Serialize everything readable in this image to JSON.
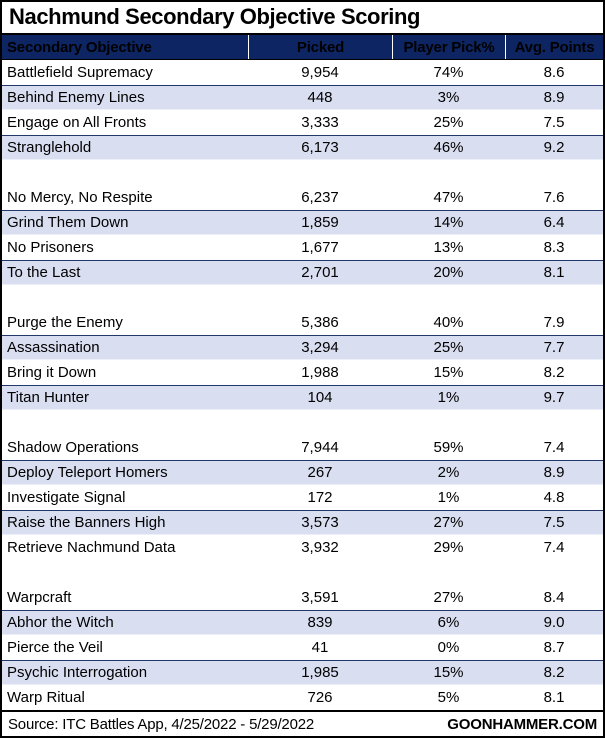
{
  "title": "Nachmund Secondary Objective Scoring",
  "colors": {
    "header_bg": "#0e2563",
    "header_text": "#ffffff",
    "alt_row_bg": "#d9def1",
    "row_bg": "#ffffff",
    "border": "#000000"
  },
  "chart_data": {
    "type": "table",
    "title": "Nachmund Secondary Objective Scoring",
    "columns": [
      "Secondary Objective",
      "Picked",
      "Player Pick%",
      "Avg. Points"
    ],
    "groups": [
      [
        {
          "objective": "Battlefield Supremacy",
          "picked": "9,954",
          "pick_pct": "74%",
          "avg_points": "8.6"
        },
        {
          "objective": "Behind Enemy Lines",
          "picked": "448",
          "pick_pct": "3%",
          "avg_points": "8.9"
        },
        {
          "objective": "Engage on All Fronts",
          "picked": "3,333",
          "pick_pct": "25%",
          "avg_points": "7.5"
        },
        {
          "objective": "Stranglehold",
          "picked": "6,173",
          "pick_pct": "46%",
          "avg_points": "9.2"
        }
      ],
      [
        {
          "objective": "No Mercy, No Respite",
          "picked": "6,237",
          "pick_pct": "47%",
          "avg_points": "7.6"
        },
        {
          "objective": "Grind Them Down",
          "picked": "1,859",
          "pick_pct": "14%",
          "avg_points": "6.4"
        },
        {
          "objective": "No Prisoners",
          "picked": "1,677",
          "pick_pct": "13%",
          "avg_points": "8.3"
        },
        {
          "objective": "To the Last",
          "picked": "2,701",
          "pick_pct": "20%",
          "avg_points": "8.1"
        }
      ],
      [
        {
          "objective": "Purge the Enemy",
          "picked": "5,386",
          "pick_pct": "40%",
          "avg_points": "7.9"
        },
        {
          "objective": "Assassination",
          "picked": "3,294",
          "pick_pct": "25%",
          "avg_points": "7.7"
        },
        {
          "objective": "Bring it Down",
          "picked": "1,988",
          "pick_pct": "15%",
          "avg_points": "8.2"
        },
        {
          "objective": "Titan Hunter",
          "picked": "104",
          "pick_pct": "1%",
          "avg_points": "9.7"
        }
      ],
      [
        {
          "objective": "Shadow Operations",
          "picked": "7,944",
          "pick_pct": "59%",
          "avg_points": "7.4"
        },
        {
          "objective": "Deploy Teleport Homers",
          "picked": "267",
          "pick_pct": "2%",
          "avg_points": "8.9"
        },
        {
          "objective": "Investigate Signal",
          "picked": "172",
          "pick_pct": "1%",
          "avg_points": "4.8"
        },
        {
          "objective": "Raise the Banners High",
          "picked": "3,573",
          "pick_pct": "27%",
          "avg_points": "7.5"
        },
        {
          "objective": "Retrieve Nachmund Data",
          "picked": "3,932",
          "pick_pct": "29%",
          "avg_points": "7.4"
        }
      ],
      [
        {
          "objective": "Warpcraft",
          "picked": "3,591",
          "pick_pct": "27%",
          "avg_points": "8.4"
        },
        {
          "objective": "Abhor the Witch",
          "picked": "839",
          "pick_pct": "6%",
          "avg_points": "9.0"
        },
        {
          "objective": "Pierce the Veil",
          "picked": "41",
          "pick_pct": "0%",
          "avg_points": "8.7"
        },
        {
          "objective": "Psychic Interrogation",
          "picked": "1,985",
          "pick_pct": "15%",
          "avg_points": "8.2"
        },
        {
          "objective": "Warp Ritual",
          "picked": "726",
          "pick_pct": "5%",
          "avg_points": "8.1"
        }
      ]
    ]
  },
  "footer": {
    "source": "Source: ITC Battles App, 4/25/2022 - 5/29/2022",
    "brand": "GOONHAMMER.COM"
  }
}
